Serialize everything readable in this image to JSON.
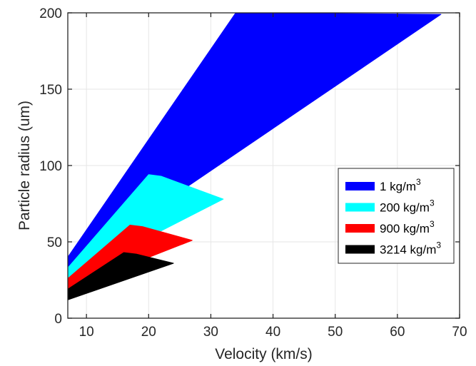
{
  "chart_data": {
    "type": "area",
    "xlabel": "Velocity (km/s)",
    "ylabel": "Particle radius (um)",
    "xlim": [
      7,
      70
    ],
    "ylim": [
      0,
      200
    ],
    "xticks": [
      10,
      20,
      30,
      40,
      50,
      60,
      70
    ],
    "yticks": [
      0,
      50,
      100,
      150,
      200
    ],
    "grid": true,
    "legend_position": "right",
    "series": [
      {
        "name": "1 kg/m",
        "superscript": "3",
        "color": "#0000ff",
        "polygon": [
          [
            7,
            40
          ],
          [
            34,
            200
          ],
          [
            67,
            199
          ],
          [
            7,
            33
          ]
        ]
      },
      {
        "name": "200 kg/m",
        "superscript": "3",
        "color": "#00ffff",
        "polygon": [
          [
            7,
            33
          ],
          [
            20,
            94
          ],
          [
            22,
            93
          ],
          [
            32,
            78
          ],
          [
            7,
            26
          ]
        ]
      },
      {
        "name": "900 kg/m",
        "superscript": "3",
        "color": "#ff0000",
        "polygon": [
          [
            7,
            26
          ],
          [
            17,
            61
          ],
          [
            19,
            60
          ],
          [
            27,
            51
          ],
          [
            7,
            19
          ]
        ]
      },
      {
        "name": "3214 kg/m",
        "superscript": "3",
        "color": "#000000",
        "polygon": [
          [
            7,
            19
          ],
          [
            16,
            43
          ],
          [
            18,
            42
          ],
          [
            24,
            36
          ],
          [
            7,
            12
          ]
        ]
      }
    ]
  }
}
